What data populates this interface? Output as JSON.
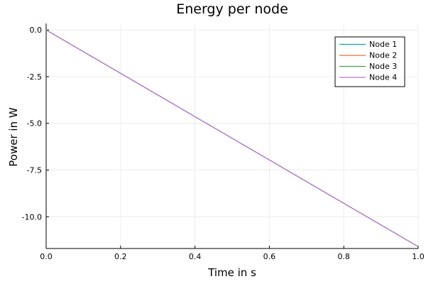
{
  "chart_data": {
    "type": "line",
    "title": "Energy per node",
    "xlabel": "Time in s",
    "ylabel": "Power in W",
    "xlim": [
      0,
      1
    ],
    "ylim": [
      -11.7,
      0.35
    ],
    "xticks": [
      0.0,
      0.2,
      0.4,
      0.6,
      0.8,
      1.0
    ],
    "xtick_labels": [
      "0.0",
      "0.2",
      "0.4",
      "0.6",
      "0.8",
      "1.0"
    ],
    "yticks": [
      0.0,
      -2.5,
      -5.0,
      -7.5,
      -10.0
    ],
    "ytick_labels": [
      "0.0",
      "-2.5",
      "-5.0",
      "-7.5",
      "-10.0"
    ],
    "grid": true,
    "legend_position": "top-right",
    "series": [
      {
        "name": "Node 1",
        "color": "#00a9ad",
        "x": [
          0,
          1
        ],
        "y": [
          0,
          -11.6
        ]
      },
      {
        "name": "Node 2",
        "color": "#e26f46",
        "x": [
          0,
          1
        ],
        "y": [
          0,
          -11.6
        ]
      },
      {
        "name": "Node 3",
        "color": "#3da44d",
        "x": [
          0,
          1
        ],
        "y": [
          0,
          -11.6
        ]
      },
      {
        "name": "Node 4",
        "color": "#c271d2",
        "x": [
          0,
          1
        ],
        "y": [
          0,
          -11.6
        ]
      }
    ]
  }
}
